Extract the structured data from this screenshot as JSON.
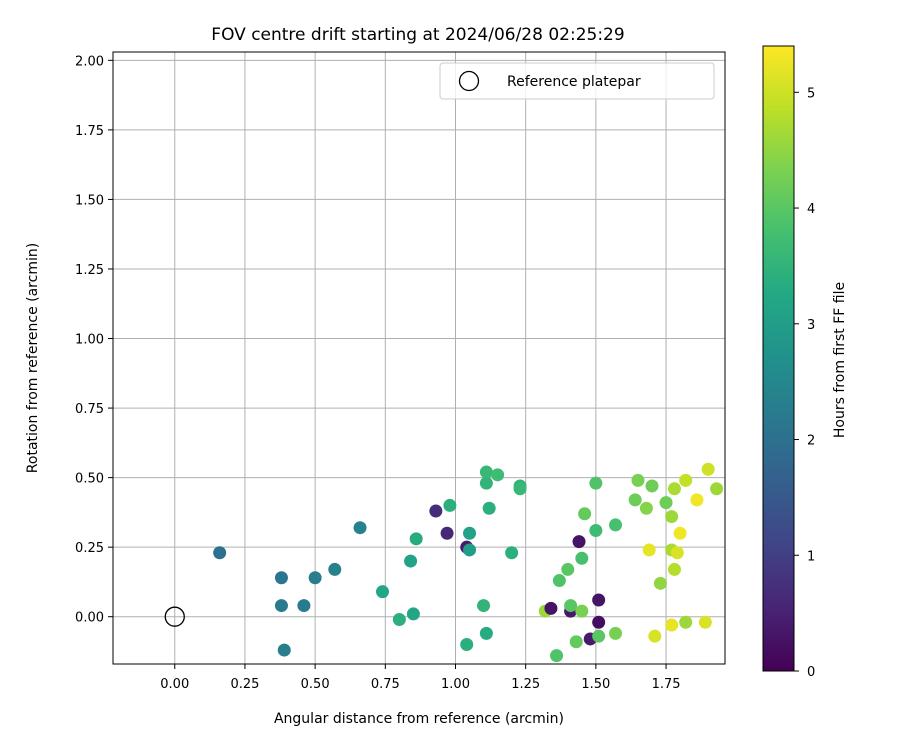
{
  "chart_data": {
    "type": "scatter",
    "title": "FOV centre drift starting at 2024/06/28 02:25:29",
    "xlabel": "Angular distance from reference (arcmin)",
    "ylabel": "Rotation from reference (arcmin)",
    "xlim": [
      -0.22,
      1.96
    ],
    "ylim": [
      -0.17,
      2.03
    ],
    "xticks": [
      0.0,
      0.25,
      0.5,
      0.75,
      1.0,
      1.25,
      1.5,
      1.75
    ],
    "xtick_labels": [
      "0.00",
      "0.25",
      "0.50",
      "0.75",
      "1.00",
      "1.25",
      "1.50",
      "1.75"
    ],
    "yticks": [
      0.0,
      0.25,
      0.5,
      0.75,
      1.0,
      1.25,
      1.5,
      1.75,
      2.0
    ],
    "ytick_labels": [
      "0.00",
      "0.25",
      "0.50",
      "0.75",
      "1.00",
      "1.25",
      "1.50",
      "1.75",
      "2.00"
    ],
    "grid": true,
    "colormap": "viridis",
    "colorbar": {
      "label": "Hours from first FF file",
      "range": [
        0,
        5.4
      ],
      "ticks": [
        0,
        1,
        2,
        3,
        4,
        5
      ],
      "tick_labels": [
        "0",
        "1",
        "2",
        "3",
        "4",
        "5"
      ]
    },
    "legend": {
      "position": "upper-right",
      "entries": [
        {
          "label": "Reference platepar",
          "marker": "open-circle",
          "color": "#000000"
        }
      ]
    },
    "reference_point": {
      "x": 0.0,
      "y": 0.0
    },
    "series": [
      {
        "points": [
          {
            "x": 0.16,
            "y": 0.23,
            "c": 2.0
          },
          {
            "x": 0.38,
            "y": 0.14,
            "c": 2.1
          },
          {
            "x": 0.38,
            "y": 0.04,
            "c": 2.2
          },
          {
            "x": 0.39,
            "y": -0.12,
            "c": 2.3
          },
          {
            "x": 0.46,
            "y": 0.04,
            "c": 2.2
          },
          {
            "x": 0.5,
            "y": 0.14,
            "c": 2.3
          },
          {
            "x": 0.57,
            "y": 0.17,
            "c": 2.35
          },
          {
            "x": 0.66,
            "y": 0.32,
            "c": 2.4
          },
          {
            "x": 0.74,
            "y": 0.09,
            "c": 3.2
          },
          {
            "x": 0.8,
            "y": -0.01,
            "c": 3.4
          },
          {
            "x": 0.84,
            "y": 0.2,
            "c": 3.1
          },
          {
            "x": 0.86,
            "y": 0.28,
            "c": 3.3
          },
          {
            "x": 0.85,
            "y": 0.01,
            "c": 3.2
          },
          {
            "x": 0.93,
            "y": 0.38,
            "c": 0.7
          },
          {
            "x": 0.97,
            "y": 0.3,
            "c": 0.6
          },
          {
            "x": 0.98,
            "y": 0.4,
            "c": 3.4
          },
          {
            "x": 1.04,
            "y": 0.25,
            "c": 0.4
          },
          {
            "x": 1.05,
            "y": 0.3,
            "c": 3.1
          },
          {
            "x": 1.05,
            "y": 0.24,
            "c": 3.0
          },
          {
            "x": 1.04,
            "y": -0.1,
            "c": 3.4
          },
          {
            "x": 1.1,
            "y": 0.04,
            "c": 3.5
          },
          {
            "x": 1.11,
            "y": -0.06,
            "c": 3.3
          },
          {
            "x": 1.11,
            "y": 0.48,
            "c": 3.5
          },
          {
            "x": 1.11,
            "y": 0.52,
            "c": 3.6
          },
          {
            "x": 1.12,
            "y": 0.39,
            "c": 3.4
          },
          {
            "x": 1.15,
            "y": 0.51,
            "c": 3.7
          },
          {
            "x": 1.2,
            "y": 0.23,
            "c": 3.4
          },
          {
            "x": 1.23,
            "y": 0.47,
            "c": 3.5
          },
          {
            "x": 1.23,
            "y": 0.46,
            "c": 3.6
          },
          {
            "x": 1.32,
            "y": 0.02,
            "c": 4.6
          },
          {
            "x": 1.34,
            "y": 0.03,
            "c": 0.3
          },
          {
            "x": 1.36,
            "y": -0.14,
            "c": 3.9
          },
          {
            "x": 1.37,
            "y": 0.13,
            "c": 3.9
          },
          {
            "x": 1.4,
            "y": 0.17,
            "c": 4.0
          },
          {
            "x": 1.41,
            "y": 0.02,
            "c": 0.35
          },
          {
            "x": 1.41,
            "y": 0.04,
            "c": 4.0
          },
          {
            "x": 1.43,
            "y": -0.09,
            "c": 4.1
          },
          {
            "x": 1.44,
            "y": 0.27,
            "c": 0.3
          },
          {
            "x": 1.45,
            "y": 0.02,
            "c": 4.3
          },
          {
            "x": 1.45,
            "y": 0.21,
            "c": 3.8
          },
          {
            "x": 1.46,
            "y": 0.37,
            "c": 4.1
          },
          {
            "x": 1.48,
            "y": -0.08,
            "c": 0.4
          },
          {
            "x": 1.5,
            "y": 0.31,
            "c": 3.7
          },
          {
            "x": 1.5,
            "y": 0.48,
            "c": 3.9
          },
          {
            "x": 1.51,
            "y": -0.02,
            "c": 0.2
          },
          {
            "x": 1.51,
            "y": 0.06,
            "c": 0.3
          },
          {
            "x": 1.51,
            "y": -0.07,
            "c": 4.0
          },
          {
            "x": 1.57,
            "y": 0.33,
            "c": 3.8
          },
          {
            "x": 1.57,
            "y": -0.06,
            "c": 4.3
          },
          {
            "x": 1.64,
            "y": 0.42,
            "c": 4.2
          },
          {
            "x": 1.65,
            "y": 0.49,
            "c": 4.3
          },
          {
            "x": 1.68,
            "y": 0.39,
            "c": 4.4
          },
          {
            "x": 1.69,
            "y": 0.24,
            "c": 5.2
          },
          {
            "x": 1.7,
            "y": 0.47,
            "c": 4.2
          },
          {
            "x": 1.71,
            "y": -0.07,
            "c": 5.1
          },
          {
            "x": 1.73,
            "y": 0.12,
            "c": 4.5
          },
          {
            "x": 1.75,
            "y": 0.41,
            "c": 4.2
          },
          {
            "x": 1.77,
            "y": 0.36,
            "c": 4.6
          },
          {
            "x": 1.77,
            "y": 0.24,
            "c": 4.7
          },
          {
            "x": 1.77,
            "y": -0.03,
            "c": 5.2
          },
          {
            "x": 1.78,
            "y": 0.46,
            "c": 4.7
          },
          {
            "x": 1.78,
            "y": 0.17,
            "c": 4.8
          },
          {
            "x": 1.79,
            "y": 0.23,
            "c": 5.1
          },
          {
            "x": 1.8,
            "y": 0.3,
            "c": 5.3
          },
          {
            "x": 1.82,
            "y": 0.49,
            "c": 4.9
          },
          {
            "x": 1.82,
            "y": -0.02,
            "c": 4.6
          },
          {
            "x": 1.86,
            "y": 0.42,
            "c": 5.3
          },
          {
            "x": 1.89,
            "y": -0.02,
            "c": 5.1
          },
          {
            "x": 1.9,
            "y": 0.53,
            "c": 5.0
          },
          {
            "x": 1.93,
            "y": 0.46,
            "c": 4.6
          }
        ]
      }
    ]
  }
}
